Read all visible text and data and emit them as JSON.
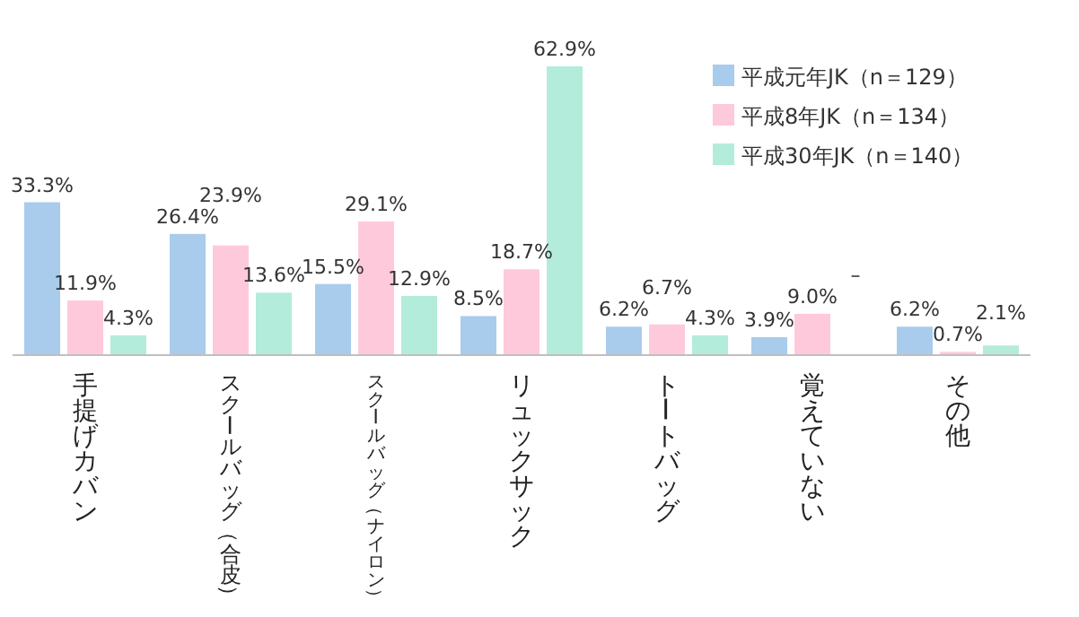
{
  "chart_data": {
    "type": "bar",
    "categories": [
      "手提げカバン",
      "スクールバッグ（合皮）",
      "スクールバッグ（ナイロン）",
      "リュックサック",
      "トートバッグ",
      "覚えていない",
      "その他"
    ],
    "relative": false,
    "legend": "top right",
    "series": [
      {
        "name": "平成元年JK（n＝129）",
        "color": "#a9cbec",
        "values": [
          33.3,
          26.4,
          15.5,
          8.5,
          6.2,
          3.9,
          6.2
        ],
        "value_labels": [
          "33.3%",
          "26.4%",
          "15.5%",
          "8.5%",
          "6.2%",
          "3.9%",
          "6.2%"
        ]
      },
      {
        "name": "平成8年JK（n＝134）",
        "color": "#ffc9dc",
        "values": [
          11.9,
          23.9,
          29.1,
          18.7,
          6.7,
          9.0,
          0.7
        ],
        "value_labels": [
          "11.9%",
          "23.9%",
          "29.1%",
          "18.7%",
          "6.7%",
          "9.0%",
          "0.7%"
        ]
      },
      {
        "name": "平成30年JK（n＝140）",
        "color": "#b3ecdb",
        "values": [
          4.3,
          13.6,
          12.9,
          62.9,
          4.3,
          null,
          2.1
        ],
        "value_labels": [
          "4.3%",
          "13.6%",
          "12.9%",
          "62.9%",
          "4.3%",
          "–",
          "2.1%"
        ]
      }
    ]
  }
}
